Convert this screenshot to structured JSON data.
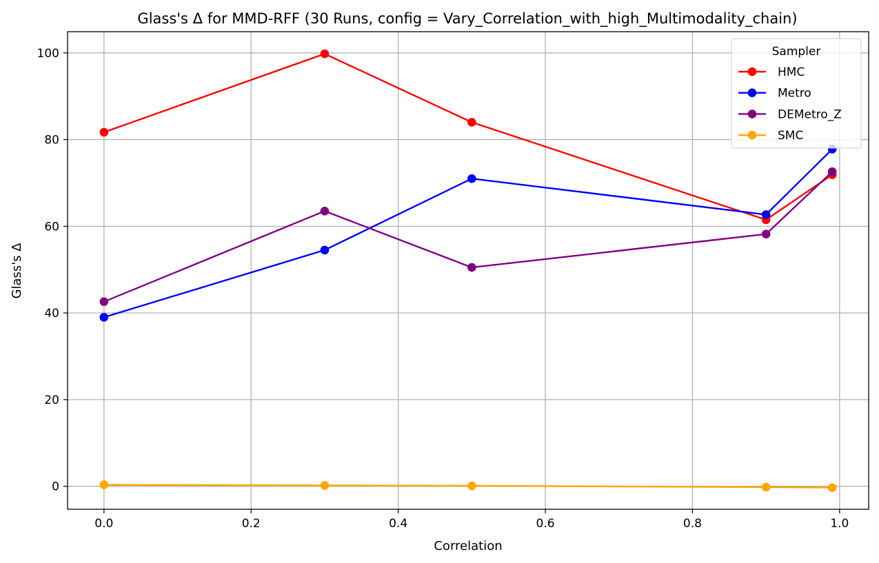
{
  "chart_data": {
    "type": "line",
    "title": "Glass's Δ for MMD-RFF (30 Runs, config = Vary_Correlation_with_high_Multimodality_chain)",
    "xlabel": "Correlation",
    "ylabel": "Glass's Δ",
    "x": [
      0.0,
      0.3,
      0.5,
      0.9,
      0.99
    ],
    "xlim": [
      -0.0495,
      1.0395
    ],
    "ylim": [
      -5.3,
      104.9
    ],
    "xticks": [
      0.0,
      0.2,
      0.4,
      0.6,
      0.8,
      1.0
    ],
    "xtick_labels": [
      "0.0",
      "0.2",
      "0.4",
      "0.6",
      "0.8",
      "1.0"
    ],
    "yticks": [
      0,
      20,
      40,
      60,
      80,
      100
    ],
    "ytick_labels": [
      "0",
      "20",
      "40",
      "60",
      "80",
      "100"
    ],
    "grid": true,
    "legend": {
      "title": "Sampler",
      "placement": "top-right"
    },
    "series": [
      {
        "name": "HMC",
        "color": "#ff0000",
        "values": [
          81.7,
          99.8,
          84.0,
          61.5,
          71.9
        ]
      },
      {
        "name": "Metro",
        "color": "#0000ff",
        "values": [
          39.0,
          54.5,
          71.0,
          62.7,
          77.8
        ]
      },
      {
        "name": "DEMetro_Z",
        "color": "#800080",
        "values": [
          42.6,
          63.5,
          50.5,
          58.2,
          72.6
        ]
      },
      {
        "name": "SMC",
        "color": "#ffa500",
        "values": [
          0.35,
          0.2,
          0.1,
          -0.2,
          -0.3
        ]
      }
    ]
  }
}
